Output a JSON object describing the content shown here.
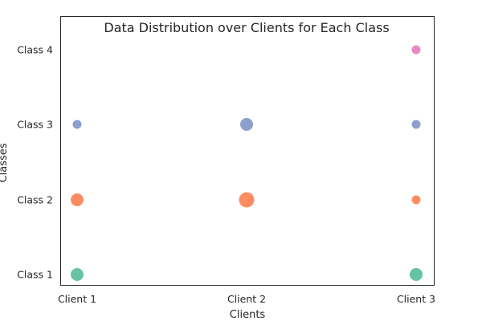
{
  "chart_data": {
    "type": "scatter",
    "title": "Data Distribution over Clients for Each Class",
    "xlabel": "Clients",
    "ylabel": "Classes",
    "categories_x": [
      "Client 1",
      "Client 2",
      "Client 3"
    ],
    "categories_y": [
      "Class 1",
      "Class 2",
      "Class 3",
      "Class 4"
    ],
    "grid": false,
    "size_encodes": "relative amount of data per client/class",
    "series": [
      {
        "class": "Class 1",
        "color": "#66c2a5",
        "points": [
          {
            "x": "Client 1",
            "size": 3
          },
          {
            "x": "Client 3",
            "size": 3
          }
        ]
      },
      {
        "class": "Class 2",
        "color": "#fc8d62",
        "points": [
          {
            "x": "Client 1",
            "size": 3
          },
          {
            "x": "Client 2",
            "size": 4
          },
          {
            "x": "Client 3",
            "size": 1
          }
        ]
      },
      {
        "class": "Class 3",
        "color": "#8da0cb",
        "points": [
          {
            "x": "Client 1",
            "size": 1
          },
          {
            "x": "Client 2",
            "size": 3
          },
          {
            "x": "Client 3",
            "size": 1
          }
        ]
      },
      {
        "class": "Class 4",
        "color": "#e78ac3",
        "points": [
          {
            "x": "Client 3",
            "size": 1
          }
        ]
      }
    ]
  }
}
